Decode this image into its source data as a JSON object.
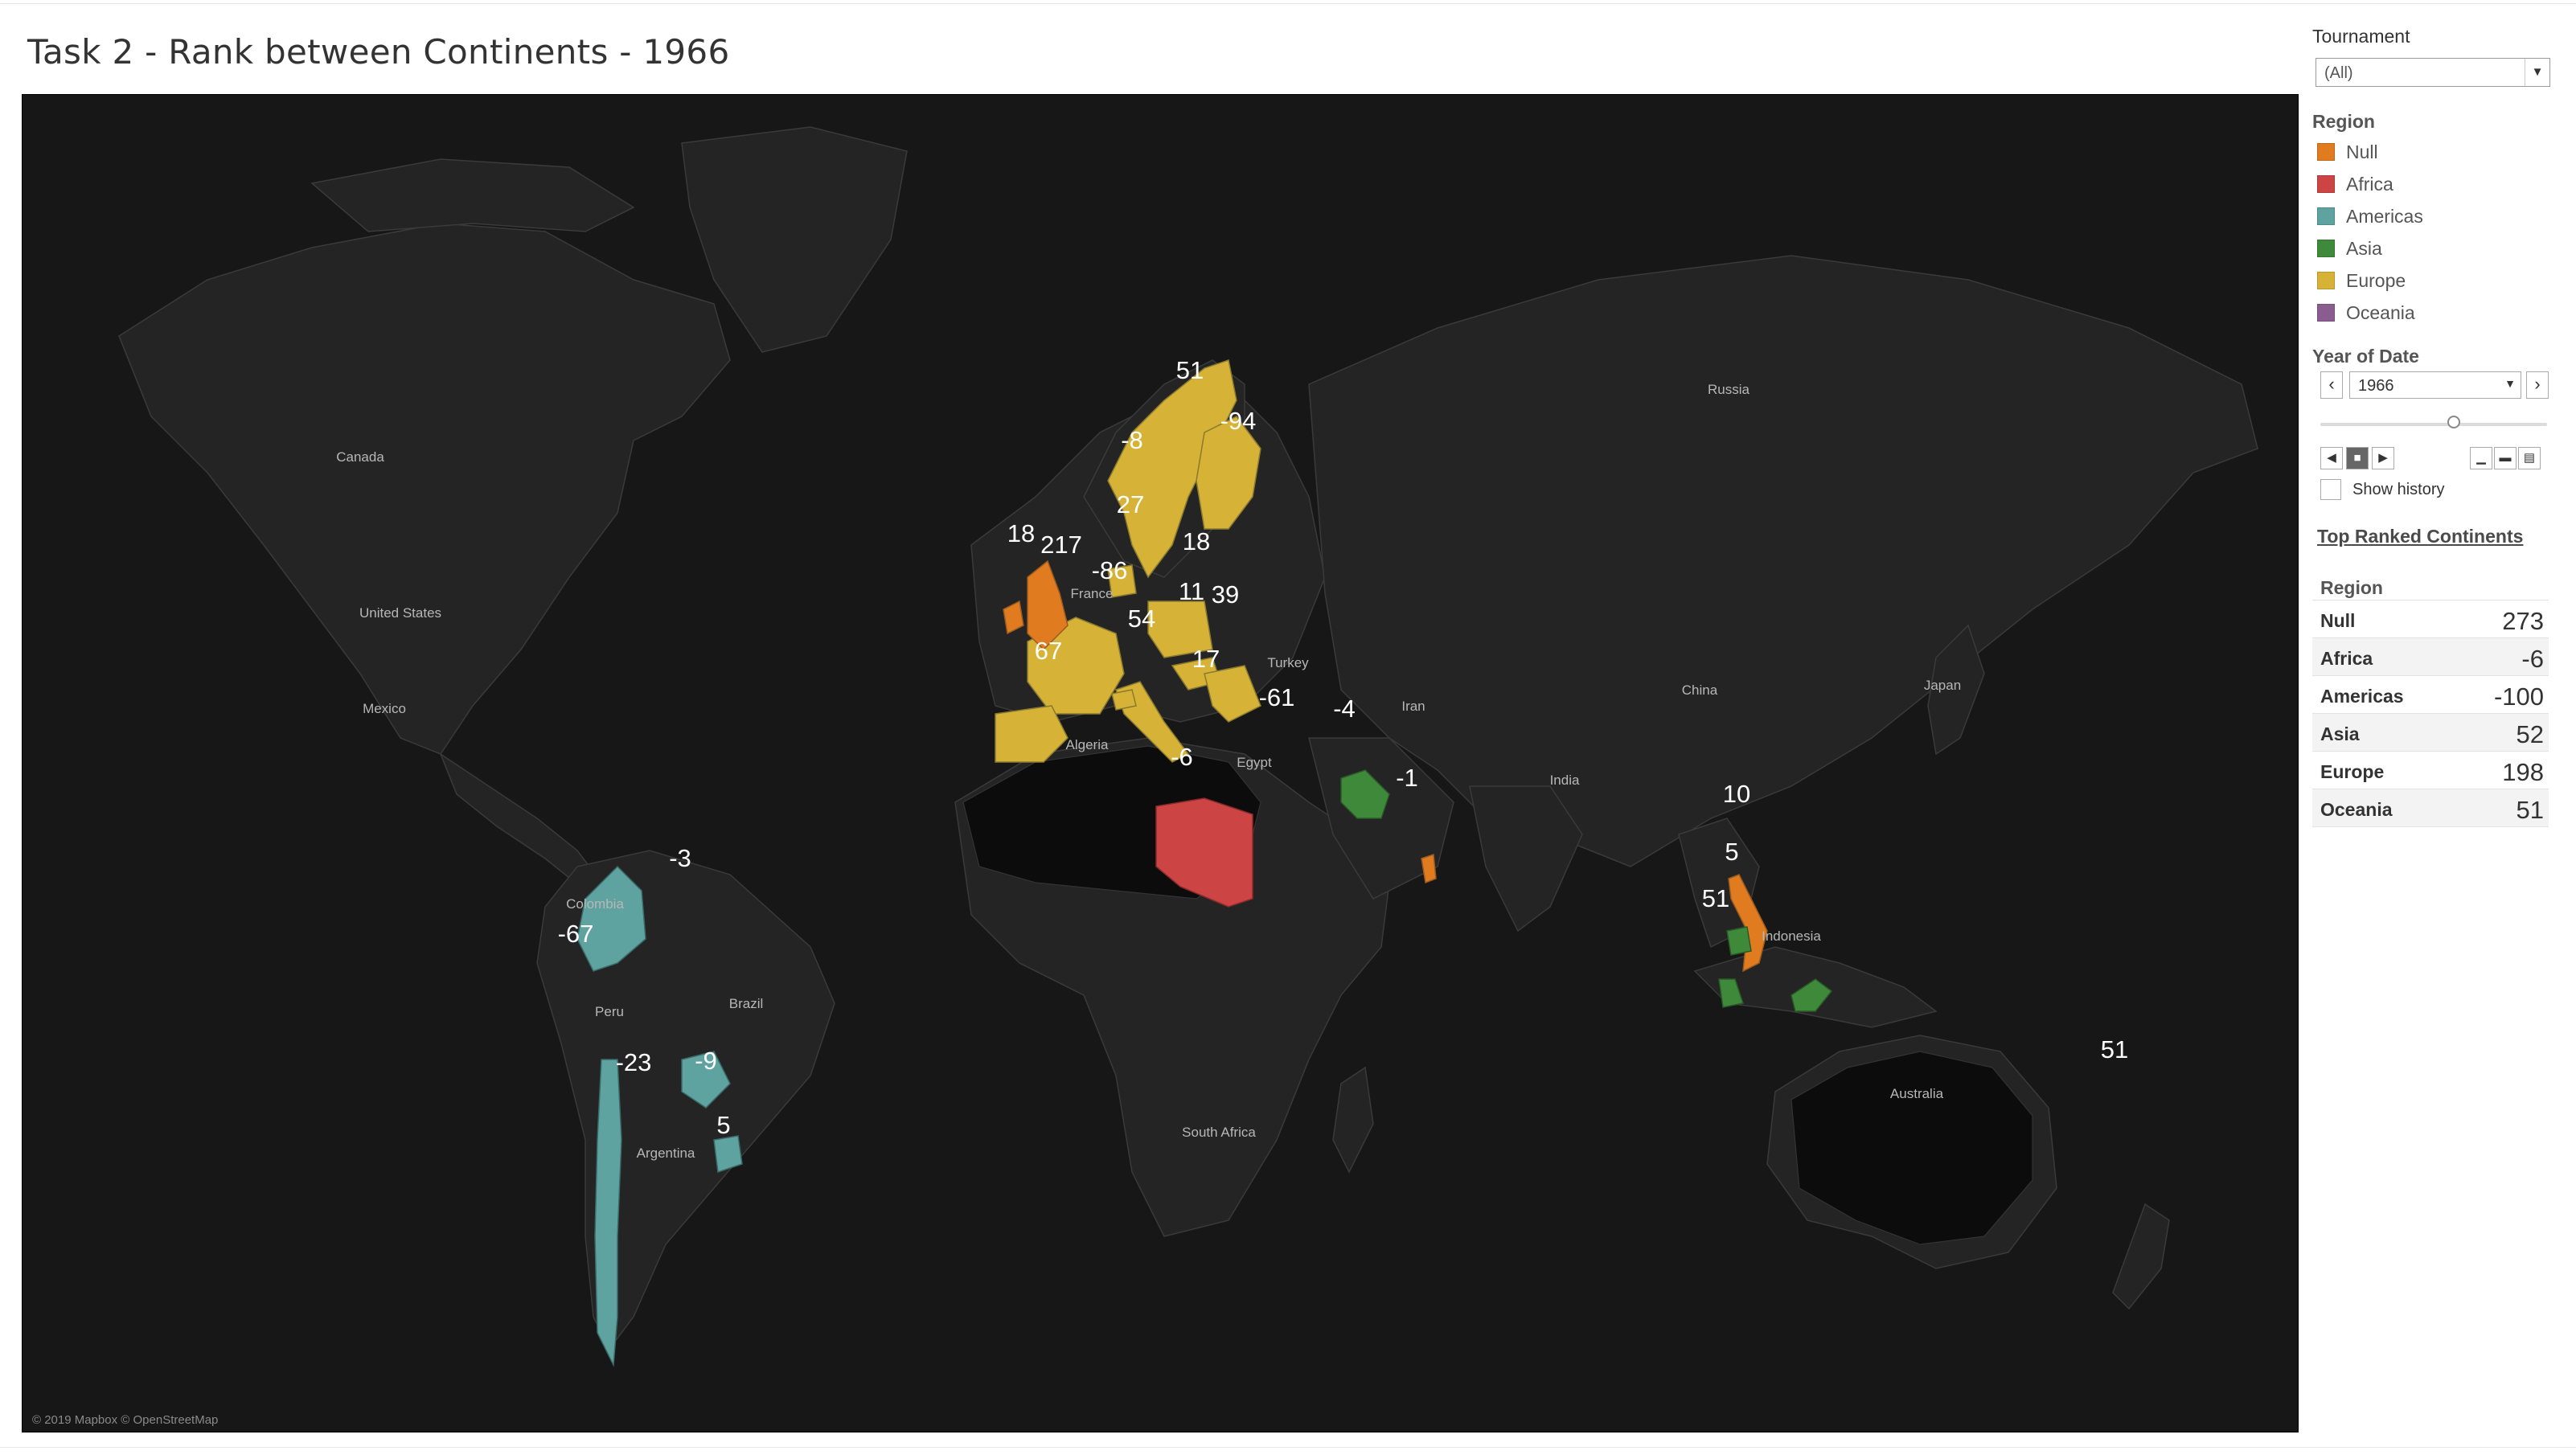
{
  "title": "Task 2 - Rank between Continents - 1966",
  "map": {
    "attribution": "© 2019 Mapbox © OpenStreetMap",
    "place_labels": [
      "Canada",
      "United States",
      "Mexico",
      "Colombia",
      "Peru",
      "Brazil",
      "Argentina",
      "Algeria",
      "Egypt",
      "Turkey",
      "Iran",
      "Russia",
      "China",
      "India",
      "Japan",
      "Indonesia",
      "Australia",
      "South Africa",
      "France"
    ],
    "value_labels": [
      "51",
      "-94",
      "-8",
      "27",
      "18",
      "217",
      "18",
      "-86",
      "11",
      "39",
      "54",
      "67",
      "17",
      "-61",
      "-4",
      "-6",
      "-1",
      "10",
      "5",
      "51",
      "-3",
      "-67",
      "-23",
      "-9",
      "5",
      "51"
    ]
  },
  "sidebar": {
    "tournament_label": "Tournament",
    "tournament_value": "(All)",
    "region_label": "Region",
    "legend": [
      {
        "label": "Null",
        "color": "#e07b20"
      },
      {
        "label": "Africa",
        "color": "#cc4444"
      },
      {
        "label": "Americas",
        "color": "#5fa3a0"
      },
      {
        "label": "Asia",
        "color": "#3f8a3a"
      },
      {
        "label": "Europe",
        "color": "#d6b336"
      },
      {
        "label": "Oceania",
        "color": "#8b5c8f"
      }
    ],
    "year_label": "Year of Date",
    "year_value": "1966",
    "show_history": "Show history",
    "table_title": "Top Ranked Continents",
    "table_header": "Region",
    "table_rows": [
      {
        "region": "Null",
        "value": "273"
      },
      {
        "region": "Africa",
        "value": "-6"
      },
      {
        "region": "Americas",
        "value": "-100"
      },
      {
        "region": "Asia",
        "value": "52"
      },
      {
        "region": "Europe",
        "value": "198"
      },
      {
        "region": "Oceania",
        "value": "51"
      }
    ]
  }
}
